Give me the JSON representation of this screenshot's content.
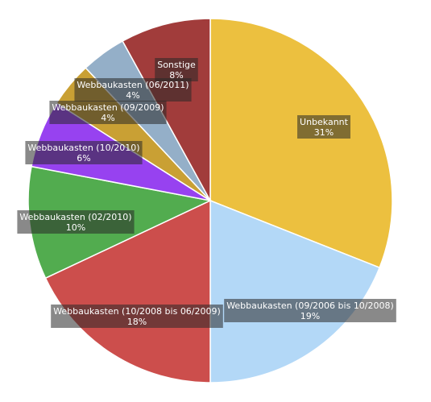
{
  "chart_data": {
    "type": "pie",
    "title": "",
    "start_angle_deg": 0,
    "direction": "clockwise",
    "slices": [
      {
        "label": "Unbekannt",
        "pct_label": "31%",
        "value": 31,
        "color": "#ecc03f"
      },
      {
        "label": "Webbaukasten (09/2006 bis 10/2008)",
        "pct_label": "19%",
        "value": 19,
        "color": "#b3d8f7"
      },
      {
        "label": "Webbaukasten (10/2008 bis 06/2009)",
        "pct_label": "18%",
        "value": 18,
        "color": "#cc4e4c"
      },
      {
        "label": "Webbaukasten (02/2010)",
        "pct_label": "10%",
        "value": 10,
        "color": "#52ac4f"
      },
      {
        "label": "Webbaukasten (10/2010)",
        "pct_label": "6%",
        "value": 6,
        "color": "#9742f0"
      },
      {
        "label": "Webbaukasten (09/2009)",
        "pct_label": "4%",
        "value": 4,
        "color": "#c9a034"
      },
      {
        "label": "Webbaukasten (06/2011)",
        "pct_label": "4%",
        "value": 4,
        "color": "#94afc8"
      },
      {
        "label": "Sonstige",
        "pct_label": "8%",
        "value": 8,
        "color": "#a13c3b"
      }
    ]
  }
}
